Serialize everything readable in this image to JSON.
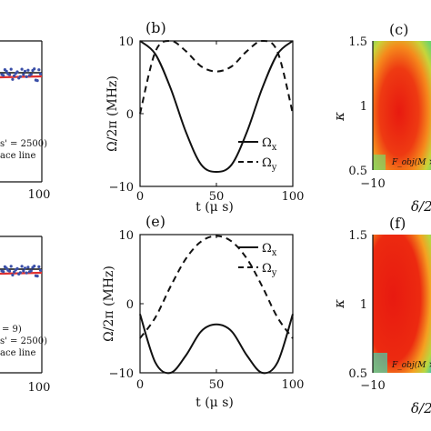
{
  "chart_data": [
    {
      "panel": "a-partial",
      "type": "scatter",
      "x_ticks": [
        "100"
      ],
      "legend_fragments": [
        "s' = 2500)",
        "ace line"
      ],
      "colors": {
        "points": "#3a4fa8",
        "line": "#e03030",
        "ref": "#111111"
      }
    },
    {
      "panel": "(b)",
      "type": "line",
      "xlabel": "t (μ s)",
      "ylabel": "Ω/2π (MHz)",
      "xlim": [
        0,
        100
      ],
      "ylim": [
        -10,
        10
      ],
      "x_ticks": [
        "0",
        "50",
        "100"
      ],
      "y_ticks": [
        "10",
        "0",
        "−10"
      ],
      "legend_position": "bottom-right",
      "series": [
        {
          "name": "Ω",
          "sub": "x",
          "style": "solid",
          "x": [
            0,
            10,
            20,
            30,
            40,
            50,
            60,
            70,
            80,
            90,
            100
          ],
          "y": [
            10,
            8.2,
            3.5,
            -2.5,
            -7.0,
            -8.0,
            -7.0,
            -2.5,
            3.5,
            8.2,
            10
          ]
        },
        {
          "name": "Ω",
          "sub": "y",
          "style": "dashed",
          "x": [
            0,
            10,
            20,
            30,
            40,
            50,
            60,
            70,
            80,
            90,
            100
          ],
          "y": [
            0,
            8.5,
            10,
            8.6,
            6.5,
            5.8,
            6.5,
            8.6,
            10,
            8.5,
            0
          ]
        }
      ]
    },
    {
      "panel": "(c)",
      "type": "heatmap",
      "ylabel": "κ",
      "xlabel": "δ/2",
      "ylim": [
        0.5,
        1.5
      ],
      "y_ticks": [
        "1.5",
        "1",
        "0.5"
      ],
      "x_ticks": [
        "−10"
      ],
      "annotation": "F_obj(M ×"
    },
    {
      "panel": "b-partial",
      "type": "scatter",
      "x_ticks": [
        "100"
      ],
      "legend_fragments": [
        "= 9)",
        "s' = 2500)",
        "ace line"
      ],
      "colors": {
        "points": "#3a4fa8",
        "line": "#e03030",
        "ref": "#111111"
      }
    },
    {
      "panel": "(e)",
      "type": "line",
      "xlabel": "t (μ s)",
      "ylabel": "Ω/2π (MHz)",
      "xlim": [
        0,
        100
      ],
      "ylim": [
        -10,
        10
      ],
      "x_ticks": [
        "0",
        "50",
        "100"
      ],
      "y_ticks": [
        "10",
        "0",
        "−10"
      ],
      "legend_position": "top-right",
      "series": [
        {
          "name": "Ω",
          "sub": "x",
          "style": "solid",
          "x": [
            0,
            10,
            20,
            30,
            40,
            50,
            60,
            70,
            80,
            90,
            100
          ],
          "y": [
            -1.5,
            -8.5,
            -10,
            -7.5,
            -4.0,
            -3.0,
            -4.0,
            -7.5,
            -10,
            -8.5,
            -1.5
          ]
        },
        {
          "name": "Ω",
          "sub": "y",
          "style": "dashed",
          "x": [
            0,
            10,
            20,
            30,
            40,
            50,
            60,
            70,
            80,
            90,
            100
          ],
          "y": [
            -5.0,
            -2.0,
            2.5,
            6.5,
            9.0,
            9.8,
            9.0,
            6.5,
            2.5,
            -2.0,
            -5.0
          ]
        }
      ]
    },
    {
      "panel": "(f)",
      "type": "heatmap",
      "ylabel": "κ",
      "xlabel": "δ/2",
      "ylim": [
        0.5,
        1.5
      ],
      "y_ticks": [
        "1.5",
        "1",
        "0.5"
      ],
      "x_ticks": [
        "−10"
      ],
      "annotation": "F_obj(M ×"
    }
  ]
}
